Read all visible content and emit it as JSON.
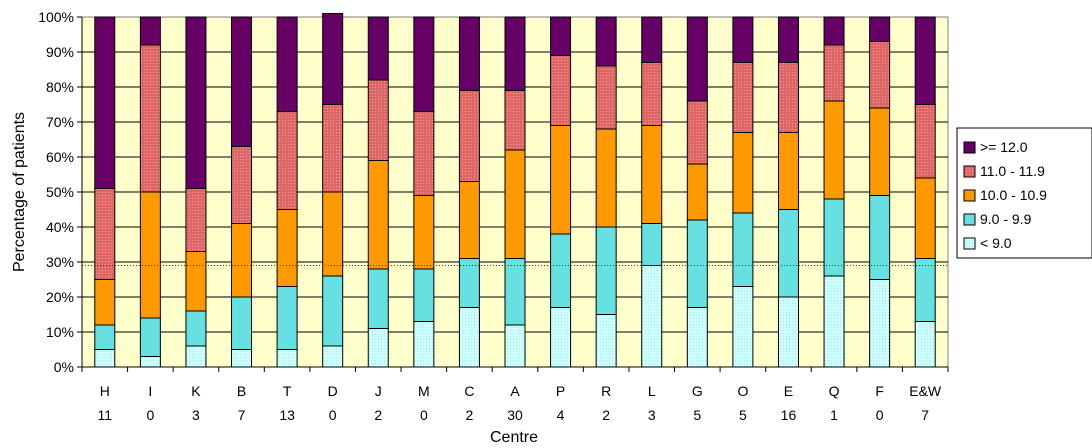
{
  "chart_data": {
    "type": "bar",
    "stacked": true,
    "percent_axis": true,
    "title": "",
    "xlabel": "Centre",
    "ylabel": "Percentage of patients",
    "ylim": [
      0,
      100
    ],
    "y_ticks": [
      "0%",
      "10%",
      "20%",
      "30%",
      "40%",
      "50%",
      "60%",
      "70%",
      "80%",
      "90%",
      "100%"
    ],
    "grid": "horizontal",
    "plot_background": "#ffffcc",
    "categories": [
      "H",
      "I",
      "K",
      "B",
      "T",
      "D",
      "J",
      "M",
      "C",
      "A",
      "P",
      "R",
      "L",
      "G",
      "O",
      "E",
      "Q",
      "F",
      "E&W"
    ],
    "sublabels": [
      "11",
      "0",
      "3",
      "7",
      "13",
      "0",
      "2",
      "0",
      "2",
      "30",
      "4",
      "2",
      "3",
      "5",
      "5",
      "16",
      "1",
      "0",
      "7"
    ],
    "reference_line": {
      "value": 29,
      "color": "#cc0000",
      "style": "dotted"
    },
    "legend_position": "right",
    "series": [
      {
        "name": "< 9.0",
        "color": "#ccffff",
        "pattern": "dotted",
        "values": [
          5,
          3,
          6,
          5,
          5,
          6,
          11,
          13,
          17,
          12,
          17,
          15,
          29,
          17,
          23,
          20,
          26,
          25,
          13
        ]
      },
      {
        "name": "9.0 - 9.9",
        "color": "#66e0e0",
        "values": [
          7,
          11,
          10,
          15,
          18,
          20,
          17,
          15,
          14,
          19,
          21,
          25,
          12,
          25,
          21,
          25,
          22,
          24,
          18
        ]
      },
      {
        "name": "10.0 - 10.9",
        "color": "#ff9900",
        "values": [
          13,
          36,
          17,
          21,
          22,
          24,
          31,
          21,
          22,
          31,
          31,
          28,
          28,
          16,
          23,
          22,
          28,
          25,
          23
        ]
      },
      {
        "name": "11.0 - 11.9",
        "color": "#e06666",
        "pattern": "dotted",
        "values": [
          26,
          42,
          18,
          22,
          28,
          25,
          23,
          24,
          26,
          17,
          20,
          18,
          18,
          18,
          20,
          20,
          16,
          19,
          21
        ]
      },
      {
        "name": ">= 12.0",
        "color": "#660066",
        "values": [
          49,
          8,
          49,
          37,
          27,
          26,
          18,
          27,
          21,
          21,
          11,
          14,
          13,
          24,
          13,
          13,
          8,
          7,
          25
        ]
      }
    ]
  }
}
